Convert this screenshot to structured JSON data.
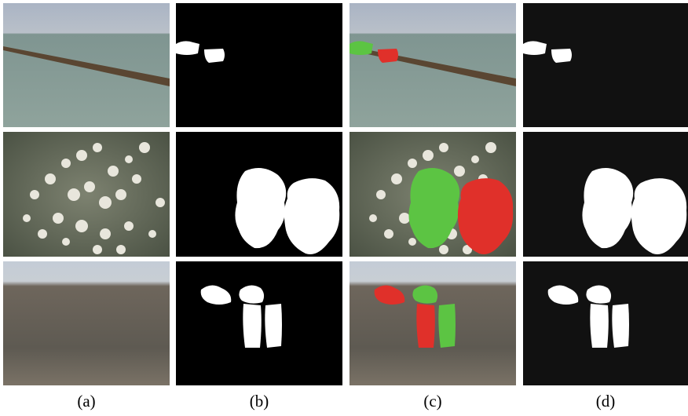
{
  "figure": {
    "panel_labels": [
      "(a)",
      "(b)",
      "(c)",
      "(d)"
    ]
  }
}
